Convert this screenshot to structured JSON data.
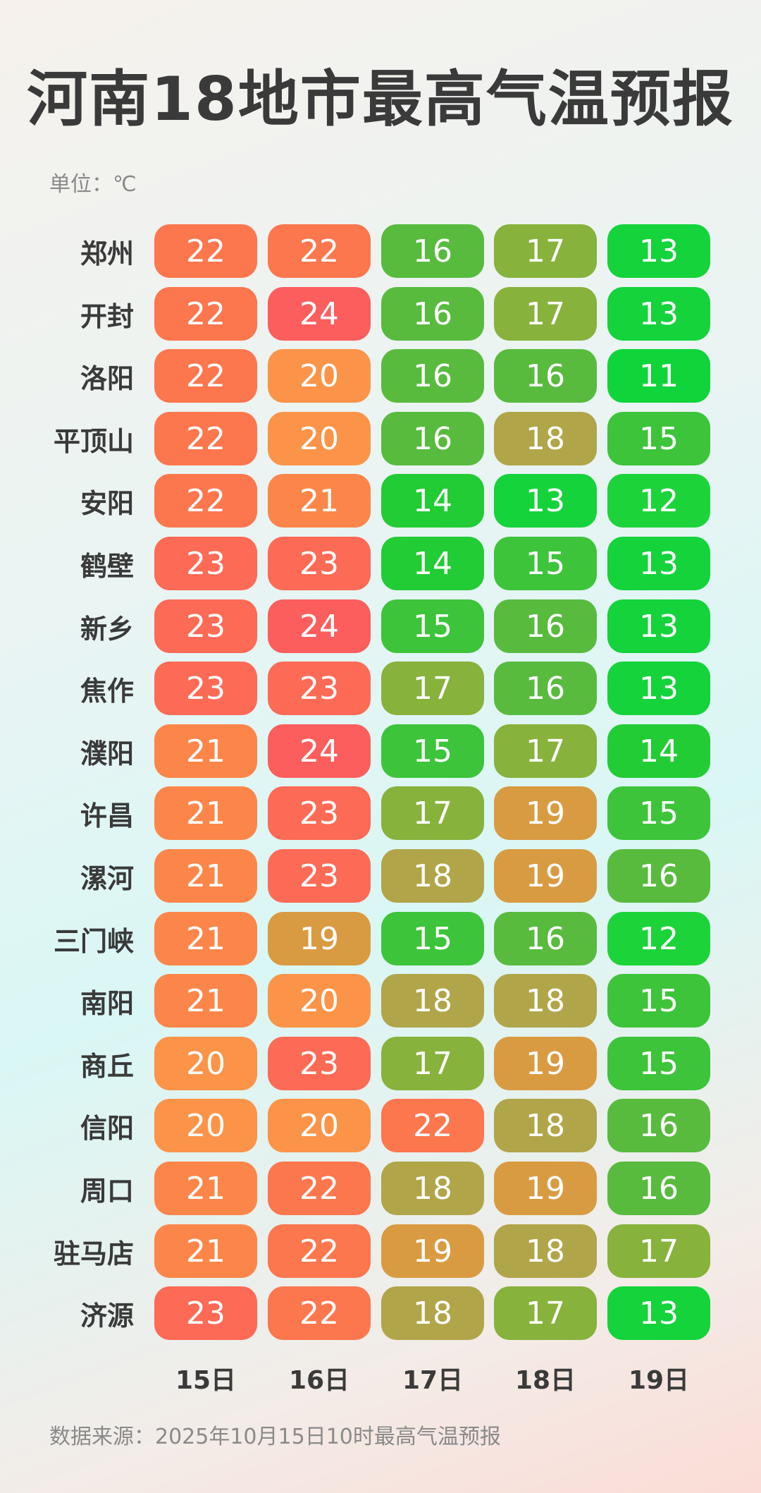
{
  "title": "河南18地市最高气温预报",
  "unit_label": "单位：℃",
  "source": "数据来源：2025年10月15日10时最高气温预报",
  "chart_data": {
    "type": "heatmap",
    "title": "河南18地市最高气温预报",
    "unit": "℃",
    "columns": [
      "15日",
      "16日",
      "17日",
      "18日",
      "19日"
    ],
    "rows": [
      "郑州",
      "开封",
      "洛阳",
      "平顶山",
      "安阳",
      "鹤壁",
      "新乡",
      "焦作",
      "濮阳",
      "许昌",
      "漯河",
      "三门峡",
      "南阳",
      "商丘",
      "信阳",
      "周口",
      "驻马店",
      "济源"
    ],
    "values": [
      [
        22,
        22,
        16,
        17,
        13
      ],
      [
        22,
        24,
        16,
        17,
        13
      ],
      [
        22,
        20,
        16,
        16,
        11
      ],
      [
        22,
        20,
        16,
        18,
        15
      ],
      [
        22,
        21,
        14,
        13,
        12
      ],
      [
        23,
        23,
        14,
        15,
        13
      ],
      [
        23,
        24,
        15,
        16,
        13
      ],
      [
        23,
        23,
        17,
        16,
        13
      ],
      [
        21,
        24,
        15,
        17,
        14
      ],
      [
        21,
        23,
        17,
        19,
        15
      ],
      [
        21,
        23,
        18,
        19,
        16
      ],
      [
        21,
        19,
        15,
        16,
        12
      ],
      [
        21,
        20,
        18,
        18,
        15
      ],
      [
        20,
        23,
        17,
        19,
        15
      ],
      [
        20,
        20,
        22,
        18,
        16
      ],
      [
        21,
        22,
        18,
        19,
        16
      ],
      [
        21,
        22,
        19,
        18,
        17
      ],
      [
        23,
        22,
        18,
        17,
        13
      ]
    ],
    "colors": {
      "11": "#0fd43a",
      "12": "#1cd43a",
      "13": "#14d33b",
      "14": "#22cc34",
      "15": "#3dc43a",
      "16": "#58bb3e",
      "17": "#87b23c",
      "18": "#b1a549",
      "19": "#d99b42",
      "20": "#fb9448",
      "21": "#fc8649",
      "22": "#fc764e",
      "23": "#fd6a55",
      "24": "#fb5e5d"
    }
  }
}
